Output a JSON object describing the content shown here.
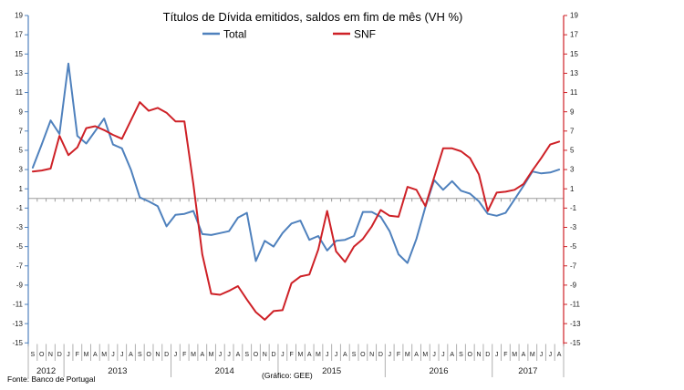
{
  "title": "Títulos de Dívida emitidos, saldos em fim de mês  (VH %)",
  "legend": {
    "total_label": "Total",
    "snf_label": "SNF"
  },
  "footer": {
    "source": "Fonte: Banco de Portugal",
    "credit": "(Gráfico: GEE)"
  },
  "colors": {
    "total": "#4F81BD",
    "snf": "#CE2127",
    "zero_axis": "#9b9b9b",
    "label_text": "#1a1a1a",
    "separator": "#b0b0b0"
  },
  "axis": {
    "y_ticks": [
      19,
      17,
      15,
      13,
      11,
      9,
      7,
      5,
      3,
      1,
      -1,
      -3,
      -5,
      -7,
      -9,
      -11,
      -13,
      -15
    ]
  },
  "chart_data": {
    "type": "line",
    "title": "Títulos de Dívida emitidos, saldos em fim de mês  (VH %)",
    "ylim": [
      -15,
      19
    ],
    "y_tick_step": 2,
    "grid": false,
    "legend_position": "top-center",
    "x_start": "2012-09",
    "x_end": "2017-08",
    "month_letters": [
      "S",
      "O",
      "N",
      "D",
      "J",
      "F",
      "M",
      "A",
      "M",
      "J",
      "J",
      "A",
      "S",
      "O",
      "N",
      "D",
      "J",
      "F",
      "M",
      "A",
      "M",
      "J",
      "J",
      "A",
      "S",
      "O",
      "N",
      "D",
      "J",
      "F",
      "M",
      "A",
      "M",
      "J",
      "J",
      "A",
      "S",
      "O",
      "N",
      "D",
      "J",
      "F",
      "M",
      "A",
      "M",
      "J",
      "J",
      "A",
      "S",
      "O",
      "N",
      "D",
      "J",
      "F",
      "M",
      "A",
      "M",
      "J",
      "J",
      "A"
    ],
    "year_groups": [
      {
        "label": "2012",
        "count": 4
      },
      {
        "label": "2013",
        "count": 12
      },
      {
        "label": "2014",
        "count": 12
      },
      {
        "label": "2015",
        "count": 12
      },
      {
        "label": "2016",
        "count": 12
      },
      {
        "label": "2017",
        "count": 8
      }
    ],
    "series": [
      {
        "name": "Total",
        "color_key": "total",
        "values": [
          3.2,
          5.6,
          8.1,
          6.7,
          14.0,
          6.5,
          5.7,
          7.0,
          8.3,
          5.6,
          5.2,
          3.0,
          0.1,
          -0.3,
          -0.8,
          -2.9,
          -1.7,
          -1.6,
          -1.3,
          -3.7,
          -3.8,
          -3.6,
          -3.4,
          -2.0,
          -1.5,
          -6.5,
          -4.4,
          -5.0,
          -3.6,
          -2.6,
          -2.3,
          -4.3,
          -3.9,
          -5.4,
          -4.4,
          -4.3,
          -3.9,
          -1.4,
          -1.4,
          -1.9,
          -3.4,
          -5.8,
          -6.7,
          -4.2,
          -0.9,
          1.9,
          0.9,
          1.8,
          0.8,
          0.5,
          -0.3,
          -1.6,
          -1.8,
          -1.5,
          -0.1,
          1.3,
          2.8,
          2.6,
          2.7,
          3.0
        ]
      },
      {
        "name": "SNF",
        "color_key": "snf",
        "values": [
          2.8,
          2.9,
          3.1,
          6.5,
          4.5,
          5.3,
          7.3,
          7.5,
          7.1,
          6.6,
          6.2,
          8.1,
          10.0,
          9.1,
          9.4,
          8.9,
          8.0,
          8.0,
          1.5,
          -5.8,
          -9.9,
          -10.0,
          -9.6,
          -9.1,
          -10.5,
          -11.8,
          -12.6,
          -11.7,
          -11.6,
          -8.8,
          -8.1,
          -7.9,
          -5.3,
          -1.3,
          -5.5,
          -6.6,
          -5.0,
          -4.2,
          -2.9,
          -1.2,
          -1.8,
          -1.9,
          1.2,
          0.9,
          -0.8,
          2.2,
          5.2,
          5.2,
          4.9,
          4.2,
          2.5,
          -1.3,
          0.6,
          0.7,
          0.9,
          1.5,
          2.9,
          4.2,
          5.6,
          5.9
        ]
      }
    ]
  }
}
